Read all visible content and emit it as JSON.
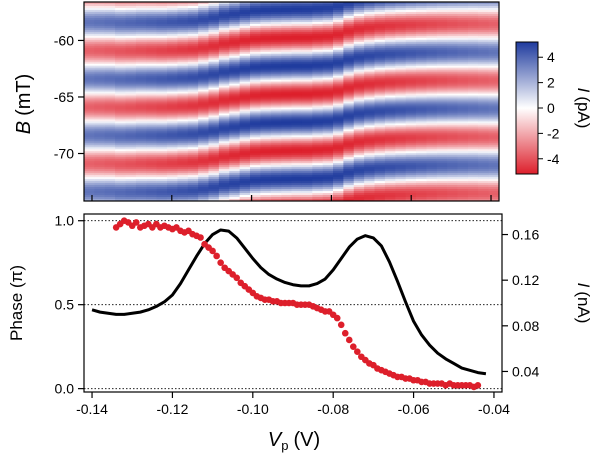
{
  "chart_data": [
    {
      "type": "heatmap",
      "xlim": [
        -0.142,
        -0.038
      ],
      "ylim": [
        -74.2,
        -56.6
      ],
      "ylabel_symbol": "B",
      "ylabel_unit": "(mT)",
      "y_ticks": [
        -60,
        -65,
        -70
      ],
      "y_tick_labels": [
        "-60",
        "-65",
        "-70"
      ],
      "oscillation_period_mT": 5.0,
      "phase_reference_mT": -61.0,
      "colorbar": {
        "label_symbol": "I",
        "label_unit": "(pA)",
        "range": [
          -5.2,
          5.2
        ],
        "ticks": [
          4,
          2,
          0,
          -2,
          -4
        ],
        "tick_labels": [
          "4",
          "2",
          "0",
          "-2",
          "-4"
        ],
        "colormap": [
          "#dd1f2b",
          "#ffffff",
          "#1f3b9e"
        ]
      },
      "grid": false
    },
    {
      "type": "line",
      "xlim": [
        -0.142,
        -0.038
      ],
      "x_ticks": [
        -0.14,
        -0.12,
        -0.1,
        -0.08,
        -0.06,
        -0.04
      ],
      "x_tick_labels": [
        "-0.14",
        "-0.12",
        "-0.10",
        "-0.08",
        "-0.06",
        "-0.04"
      ],
      "xlabel_symbol": "V",
      "xlabel_sub": "p",
      "xlabel_unit": "(V)",
      "ylabel_left": "Phase (π)",
      "ylim_left": [
        -0.02,
        1.04
      ],
      "y_ticks_left": [
        0.0,
        0.5,
        1.0
      ],
      "y_tick_labels_left": [
        "0.0",
        "0.5",
        "1.0"
      ],
      "ylabel_right_symbol": "I",
      "ylabel_right_unit": "(nA)",
      "ylim_right": [
        0.022,
        0.178
      ],
      "y_ticks_right": [
        0.04,
        0.08,
        0.12,
        0.16
      ],
      "y_tick_labels_right": [
        "0.04",
        "0.08",
        "0.12",
        "0.16"
      ],
      "reference_lines_left": [
        0.0,
        0.5,
        1.0
      ],
      "series": [
        {
          "axis": "left",
          "style": "markers",
          "color": "#dd1f2b",
          "x": [
            -0.134,
            -0.133,
            -0.132,
            -0.131,
            -0.13,
            -0.129,
            -0.128,
            -0.127,
            -0.126,
            -0.125,
            -0.124,
            -0.123,
            -0.122,
            -0.121,
            -0.12,
            -0.119,
            -0.118,
            -0.117,
            -0.116,
            -0.115,
            -0.114,
            -0.113,
            -0.112,
            -0.111,
            -0.11,
            -0.109,
            -0.108,
            -0.107,
            -0.106,
            -0.105,
            -0.104,
            -0.103,
            -0.102,
            -0.101,
            -0.1,
            -0.099,
            -0.098,
            -0.097,
            -0.096,
            -0.095,
            -0.094,
            -0.093,
            -0.092,
            -0.091,
            -0.09,
            -0.089,
            -0.088,
            -0.087,
            -0.086,
            -0.085,
            -0.084,
            -0.083,
            -0.082,
            -0.081,
            -0.08,
            -0.079,
            -0.078,
            -0.077,
            -0.076,
            -0.075,
            -0.074,
            -0.073,
            -0.072,
            -0.071,
            -0.07,
            -0.069,
            -0.068,
            -0.067,
            -0.066,
            -0.065,
            -0.064,
            -0.063,
            -0.062,
            -0.061,
            -0.06,
            -0.059,
            -0.058,
            -0.057,
            -0.056,
            -0.055,
            -0.054,
            -0.053,
            -0.052,
            -0.051,
            -0.05,
            -0.049,
            -0.048,
            -0.047,
            -0.046,
            -0.045,
            -0.044
          ],
          "y": [
            0.96,
            0.98,
            1.0,
            0.99,
            0.97,
            0.99,
            0.96,
            0.97,
            0.98,
            0.96,
            0.98,
            0.96,
            0.97,
            0.96,
            0.95,
            0.96,
            0.94,
            0.93,
            0.94,
            0.92,
            0.91,
            0.9,
            0.86,
            0.84,
            0.82,
            0.79,
            0.75,
            0.72,
            0.7,
            0.68,
            0.66,
            0.63,
            0.61,
            0.59,
            0.57,
            0.55,
            0.54,
            0.53,
            0.53,
            0.52,
            0.52,
            0.51,
            0.51,
            0.51,
            0.51,
            0.5,
            0.5,
            0.5,
            0.5,
            0.49,
            0.48,
            0.47,
            0.46,
            0.46,
            0.44,
            0.42,
            0.38,
            0.33,
            0.29,
            0.25,
            0.22,
            0.19,
            0.17,
            0.15,
            0.14,
            0.12,
            0.11,
            0.1,
            0.09,
            0.08,
            0.07,
            0.07,
            0.06,
            0.06,
            0.05,
            0.05,
            0.04,
            0.04,
            0.03,
            0.03,
            0.03,
            0.03,
            0.02,
            0.03,
            0.02,
            0.02,
            0.02,
            0.02,
            0.02,
            0.01,
            0.02
          ]
        },
        {
          "axis": "right",
          "style": "line",
          "color": "#000000",
          "x": [
            -0.14,
            -0.138,
            -0.136,
            -0.134,
            -0.132,
            -0.13,
            -0.128,
            -0.126,
            -0.124,
            -0.122,
            -0.12,
            -0.118,
            -0.116,
            -0.114,
            -0.112,
            -0.11,
            -0.108,
            -0.106,
            -0.104,
            -0.102,
            -0.1,
            -0.098,
            -0.096,
            -0.094,
            -0.092,
            -0.09,
            -0.088,
            -0.086,
            -0.084,
            -0.082,
            -0.08,
            -0.078,
            -0.076,
            -0.074,
            -0.072,
            -0.07,
            -0.068,
            -0.066,
            -0.064,
            -0.062,
            -0.06,
            -0.058,
            -0.056,
            -0.054,
            -0.052,
            -0.05,
            -0.048,
            -0.046,
            -0.044,
            -0.042
          ],
          "y": [
            0.094,
            0.092,
            0.091,
            0.09,
            0.09,
            0.091,
            0.092,
            0.094,
            0.097,
            0.101,
            0.107,
            0.117,
            0.129,
            0.141,
            0.152,
            0.16,
            0.164,
            0.163,
            0.157,
            0.148,
            0.139,
            0.131,
            0.125,
            0.121,
            0.118,
            0.116,
            0.115,
            0.115,
            0.117,
            0.121,
            0.129,
            0.139,
            0.149,
            0.156,
            0.159,
            0.157,
            0.15,
            0.136,
            0.119,
            0.101,
            0.084,
            0.072,
            0.063,
            0.056,
            0.051,
            0.047,
            0.043,
            0.041,
            0.039,
            0.038
          ]
        }
      ]
    }
  ]
}
